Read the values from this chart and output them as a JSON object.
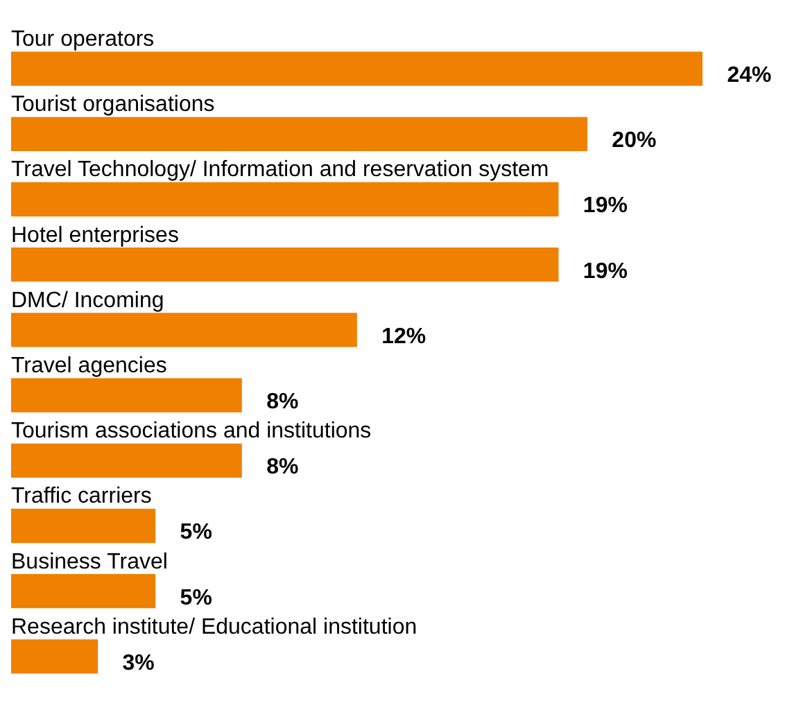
{
  "chart_data": {
    "type": "bar",
    "orientation": "horizontal",
    "categories": [
      "Tour operators",
      "Tourist organisations",
      "Travel Technology/ Information and reservation system",
      "Hotel enterprises",
      "DMC/ Incoming",
      "Travel agencies",
      "Tourism associations and institutions",
      "Traffic carriers",
      "Business Travel",
      "Research institute/ Educational institution"
    ],
    "values": [
      24,
      20,
      19,
      19,
      12,
      8,
      8,
      5,
      5,
      3
    ],
    "value_labels": [
      "24%",
      "20%",
      "19%",
      "19%",
      "12%",
      "8%",
      "8%",
      "5%",
      "5%",
      "3%"
    ],
    "color": "#f08000"
  }
}
